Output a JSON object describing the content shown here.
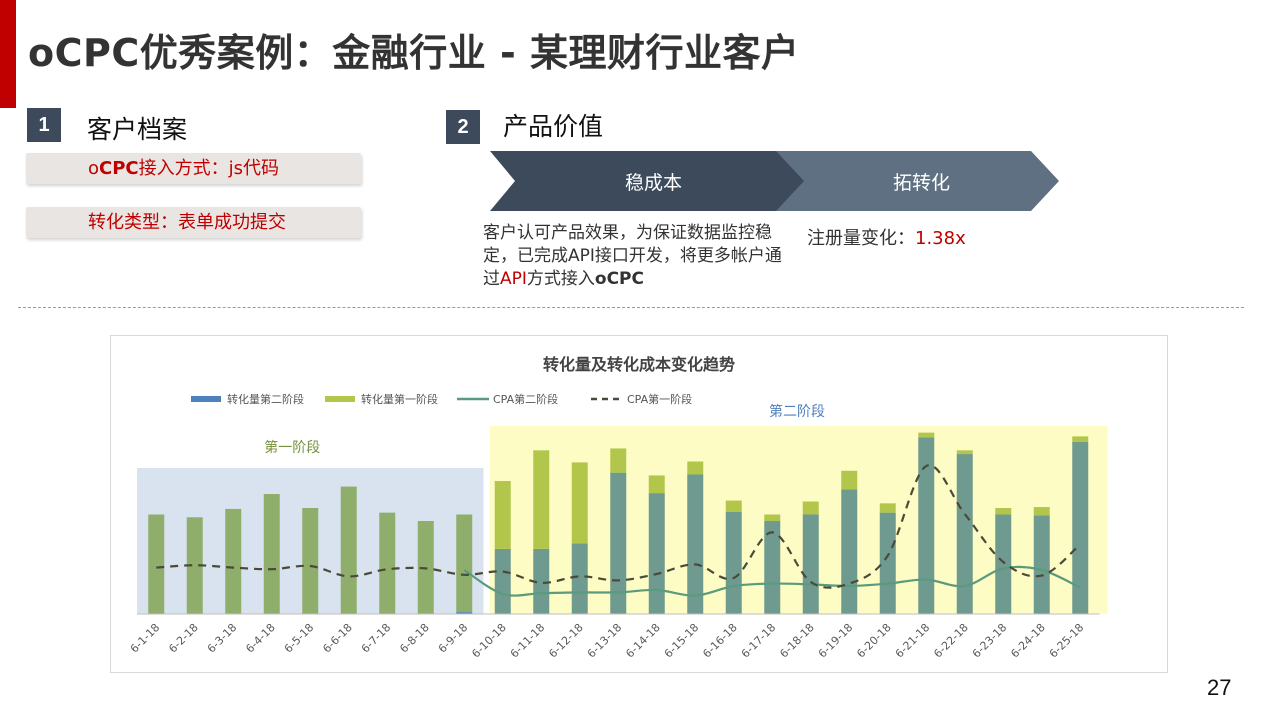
{
  "title": "oCPC优秀案例：金融行业 - 某理财行业客户",
  "section1": {
    "number": "1",
    "heading": "客户档案",
    "box1": {
      "prefix": "o",
      "bold": "CPC",
      "rest": "接入方式：js代码"
    },
    "box2": "转化类型：表单成功提交"
  },
  "section2": {
    "number": "2",
    "heading": "产品价值",
    "chevron1": "稳成本",
    "chevron2": "拓转化",
    "desc": {
      "part1": "客户认可产品效果，为保证数据监控稳定，已完成API接口开发，将更多帐户通过",
      "api": "API",
      "part2": "方式接入",
      "ocpc": "oCPC"
    },
    "reg_label": "注册量变化：",
    "reg_value": "1.38x"
  },
  "page_number": "27",
  "colors": {
    "accent_red": "#c00000",
    "dark_slate": "#3c4a5c",
    "slate": "#5f7082",
    "bar_stage1": "#8fae6b",
    "bar_stage2_lower": "#6f9a8f",
    "bar_stage2_upper": "#b3c64c",
    "bar_blue": "#4f81bd",
    "line_stage2": "#5a9a7e",
    "line_stage1": "#4a4a3a",
    "region1_bg": "#d9e3ef",
    "region2_bg": "#fcfcc4",
    "region1_label": "#76923c",
    "region2_label": "#4f81bd"
  },
  "chart_data": {
    "type": "bar",
    "title": "转化量及转化成本变化趋势",
    "categories": [
      "6-1-18",
      "6-2-18",
      "6-3-18",
      "6-4-18",
      "6-5-18",
      "6-6-18",
      "6-7-18",
      "6-8-18",
      "6-9-18",
      "6-10-18",
      "6-11-18",
      "6-12-18",
      "6-13-18",
      "6-14-18",
      "6-15-18",
      "6-16-18",
      "6-17-18",
      "6-18-18",
      "6-19-18",
      "6-20-18",
      "6-21-18",
      "6-22-18",
      "6-23-18",
      "6-24-18",
      "6-25-18"
    ],
    "stacked": true,
    "legend_position": "top-left",
    "grid": false,
    "y_axis_visible": false,
    "series": [
      {
        "name": "转化量第二阶段",
        "kind": "bar",
        "values": [
          0,
          0,
          0,
          0,
          0,
          0,
          0,
          0,
          2,
          70,
          70,
          76,
          152,
          130,
          150,
          110,
          100,
          107,
          134,
          109,
          190,
          172,
          107,
          106,
          185
        ]
      },
      {
        "name": "转化量第一阶段",
        "kind": "bar",
        "values": [
          107,
          104,
          113,
          129,
          114,
          137,
          109,
          100,
          105,
          73,
          106,
          87,
          26,
          19,
          14,
          12,
          7,
          14,
          20,
          10,
          5,
          4,
          7,
          9,
          6
        ]
      },
      {
        "name": "CPA第二阶段",
        "kind": "line",
        "style": "solid",
        "values": [
          null,
          null,
          null,
          null,
          null,
          null,
          null,
          null,
          55,
          25,
          26,
          27,
          27,
          30,
          23,
          35,
          38,
          37,
          35,
          38,
          43,
          35,
          57,
          55,
          33
        ]
      },
      {
        "name": "CPA第一阶段",
        "kind": "line",
        "style": "dashed",
        "values": [
          58,
          61,
          58,
          56,
          60,
          47,
          56,
          57,
          49,
          53,
          39,
          47,
          42,
          50,
          62,
          45,
          102,
          40,
          38,
          73,
          185,
          125,
          65,
          48,
          87
        ]
      }
    ],
    "regions": [
      {
        "label": "第一阶段",
        "from": "6-1-18",
        "to": "6-9-18"
      },
      {
        "label": "第二阶段",
        "from": "6-10-18",
        "to": "6-25-18"
      }
    ]
  }
}
